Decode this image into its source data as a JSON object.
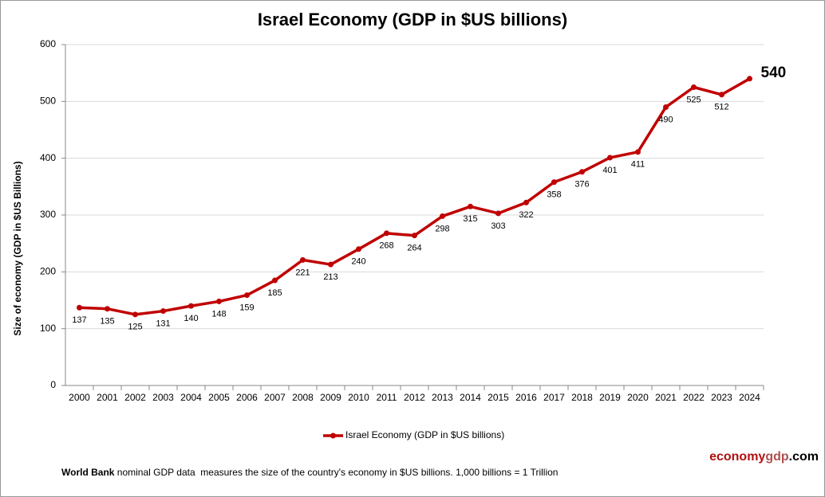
{
  "chart_data": {
    "type": "line",
    "title": "Israel Economy (GDP in $US billions)",
    "y_label": "Size of economy (GDP in $US Billions)",
    "categories": [
      "2000",
      "2001",
      "2002",
      "2003",
      "2004",
      "2005",
      "2006",
      "2007",
      "2008",
      "2009",
      "2010",
      "2011",
      "2012",
      "2013",
      "2014",
      "2015",
      "2016",
      "2017",
      "2018",
      "2019",
      "2020",
      "2021",
      "2022",
      "2023",
      "2024"
    ],
    "series": [
      {
        "name": "Israel Economy (GDP in $US billions)",
        "color": "#c00000",
        "values": [
          137,
          135,
          125,
          131,
          140,
          148,
          159,
          185,
          221,
          213,
          240,
          268,
          264,
          298,
          315,
          303,
          322,
          358,
          376,
          401,
          411,
          490,
          525,
          512,
          540
        ]
      }
    ],
    "ylim": [
      0,
      600
    ],
    "yticks": [
      0,
      100,
      200,
      300,
      400,
      500,
      600
    ],
    "grid": true,
    "legend": "bottom",
    "footer_bold": "World Bank",
    "footer_text": " nominal GDP data  measures the size of the country's economy in $US billions. 1,000 billions = 1 Trillion",
    "brand": [
      "economy",
      "gdp",
      ".com"
    ]
  }
}
